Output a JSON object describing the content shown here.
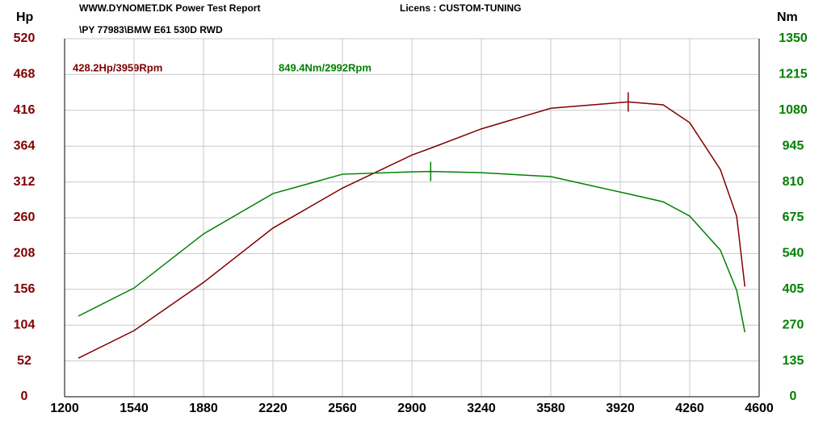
{
  "chart_data": {
    "type": "line",
    "title": "WWW.DYNOMET.DK  Power Test Report",
    "license": "Licens :  CUSTOM-TUNING",
    "subtitle": "\\PY 77983\\BMW E61 530D RWD",
    "y_label": "Hp",
    "y2_label": "Nm",
    "annotations": [
      "428.2Hp/3959Rpm",
      "849.4Nm/2992Rpm"
    ],
    "x": [
      1267,
      1540,
      1880,
      2220,
      2560,
      2900,
      2992,
      3240,
      3580,
      3959,
      4130,
      4260,
      4410,
      4490,
      4530
    ],
    "series": [
      {
        "name": "Hp",
        "color": "#800000",
        "values": [
          56,
          96,
          166,
          245,
          303,
          351,
          361,
          389,
          419,
          428.2,
          424,
          398,
          330,
          262,
          160
        ]
      },
      {
        "name": "Nm",
        "color": "#008000",
        "axis": "y2",
        "values": [
          304,
          410,
          614,
          766,
          839,
          848,
          849.4,
          845,
          830,
          765,
          735,
          681,
          553,
          401,
          243
        ]
      }
    ],
    "xlim": [
      1200,
      4600
    ],
    "xticks": [
      1200,
      1540,
      1880,
      2220,
      2560,
      2900,
      3240,
      3580,
      3920,
      4260,
      4600
    ],
    "ylim": [
      0,
      520
    ],
    "yticks": [
      0,
      52,
      104,
      156,
      208,
      260,
      312,
      364,
      416,
      468,
      520
    ],
    "y2lim": [
      0,
      1350
    ],
    "y2ticks": [
      0,
      135,
      270,
      405,
      540,
      675,
      810,
      945,
      1080,
      1215,
      1350
    ],
    "grid": true
  }
}
